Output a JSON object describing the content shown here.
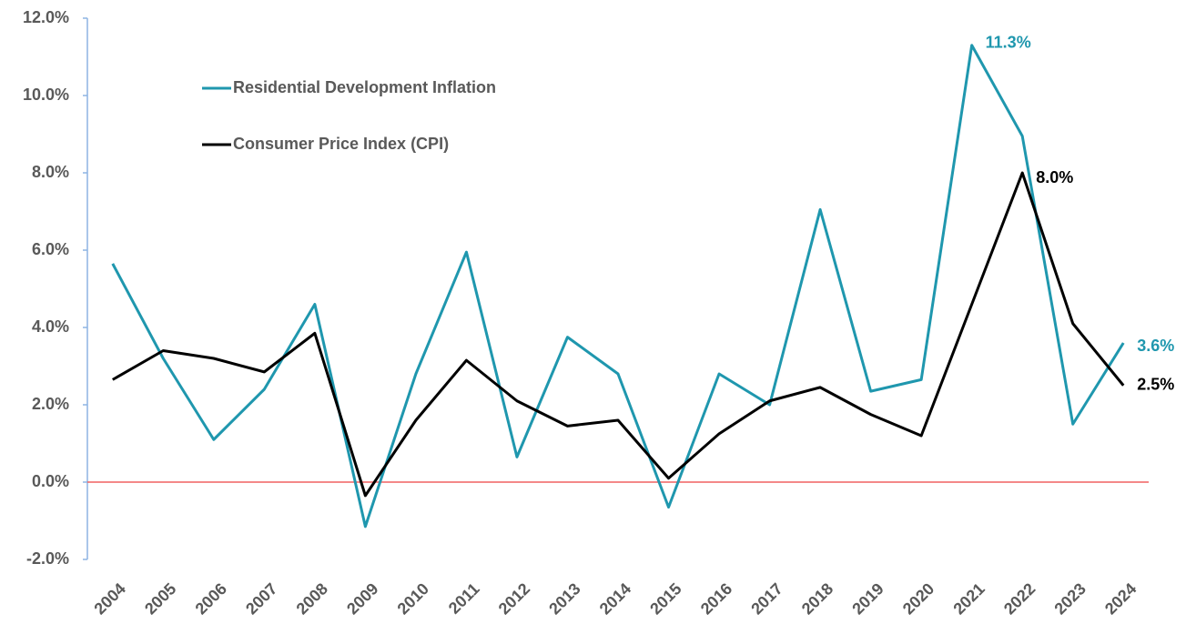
{
  "chart_data": {
    "type": "line",
    "categories": [
      "2004",
      "2005",
      "2006",
      "2007",
      "2008",
      "2009",
      "2010",
      "2011",
      "2012",
      "2013",
      "2014",
      "2015",
      "2016",
      "2017",
      "2018",
      "2019",
      "2020",
      "2021",
      "2022",
      "2023",
      "2024"
    ],
    "series": [
      {
        "name": "Residential Development Inflation",
        "color": "#1f97ae",
        "values": [
          5.65,
          3.2,
          1.1,
          2.4,
          4.6,
          -1.15,
          2.8,
          5.95,
          0.65,
          3.75,
          2.8,
          -0.65,
          2.8,
          2.0,
          7.05,
          2.35,
          2.65,
          11.3,
          8.95,
          1.5,
          3.6
        ],
        "value_labels": [
          null,
          null,
          null,
          null,
          null,
          null,
          null,
          null,
          null,
          null,
          null,
          null,
          null,
          null,
          null,
          null,
          null,
          "11.3%",
          null,
          null,
          "3.6%"
        ]
      },
      {
        "name": "Consumer Price Index (CPI)",
        "color": "#000000",
        "values": [
          2.65,
          3.4,
          3.2,
          2.85,
          3.85,
          -0.35,
          1.6,
          3.15,
          2.1,
          1.45,
          1.6,
          0.1,
          1.25,
          2.1,
          2.45,
          1.75,
          1.2,
          4.6,
          8.0,
          4.1,
          2.5
        ],
        "value_labels": [
          null,
          null,
          null,
          null,
          null,
          null,
          null,
          null,
          null,
          null,
          null,
          null,
          null,
          null,
          null,
          null,
          null,
          null,
          "8.0%",
          null,
          "2.5%"
        ]
      }
    ],
    "ylim": [
      -2,
      12
    ],
    "yticks": [
      {
        "value": -2,
        "label": "-2.0%"
      },
      {
        "value": 0,
        "label": "0.0%"
      },
      {
        "value": 2,
        "label": "2.0%"
      },
      {
        "value": 4,
        "label": "4.0%"
      },
      {
        "value": 6,
        "label": "6.0%"
      },
      {
        "value": 8,
        "label": "8.0%"
      },
      {
        "value": 10,
        "label": "10.0%"
      },
      {
        "value": 12,
        "label": "12.0%"
      }
    ],
    "zero_line_color": "#f06060"
  }
}
